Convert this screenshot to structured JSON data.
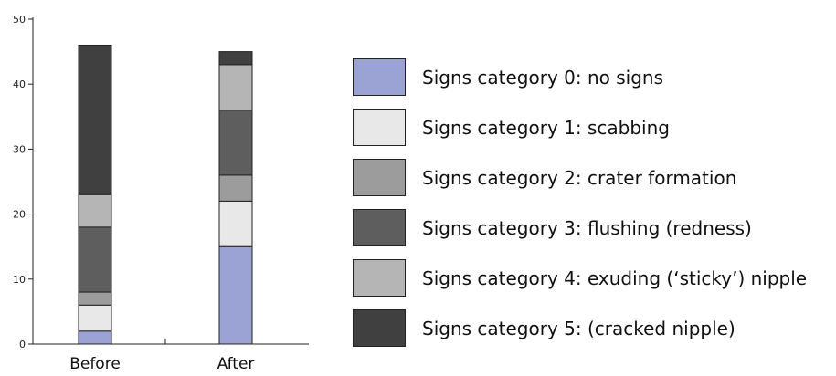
{
  "chart_data": {
    "type": "bar",
    "stacked": true,
    "categories": [
      "Before",
      "After"
    ],
    "series": [
      {
        "name": "Signs category 0: no signs",
        "color": "#9aa3d4",
        "values": [
          2,
          15
        ]
      },
      {
        "name": "Signs category 1: scabbing",
        "color": "#e8e8e8",
        "values": [
          4,
          7
        ]
      },
      {
        "name": "Signs category 2: crater formation",
        "color": "#9c9c9c",
        "values": [
          2,
          4
        ]
      },
      {
        "name": "Signs category 3: flushing (redness)",
        "color": "#5e5e5e",
        "values": [
          10,
          10
        ]
      },
      {
        "name": "Signs category 4: exuding (‘sticky’) nipple",
        "color": "#b5b5b5",
        "values": [
          5,
          7
        ]
      },
      {
        "name": "Signs category 5: (cracked nipple)",
        "color": "#404040",
        "values": [
          23,
          2
        ]
      }
    ],
    "yticks": [
      "0",
      "10",
      "20",
      "30",
      "40",
      "50"
    ],
    "ylim": [
      0,
      50
    ],
    "grid": false,
    "legend_position": "right",
    "title": "",
    "xlabel": "",
    "ylabel": ""
  }
}
